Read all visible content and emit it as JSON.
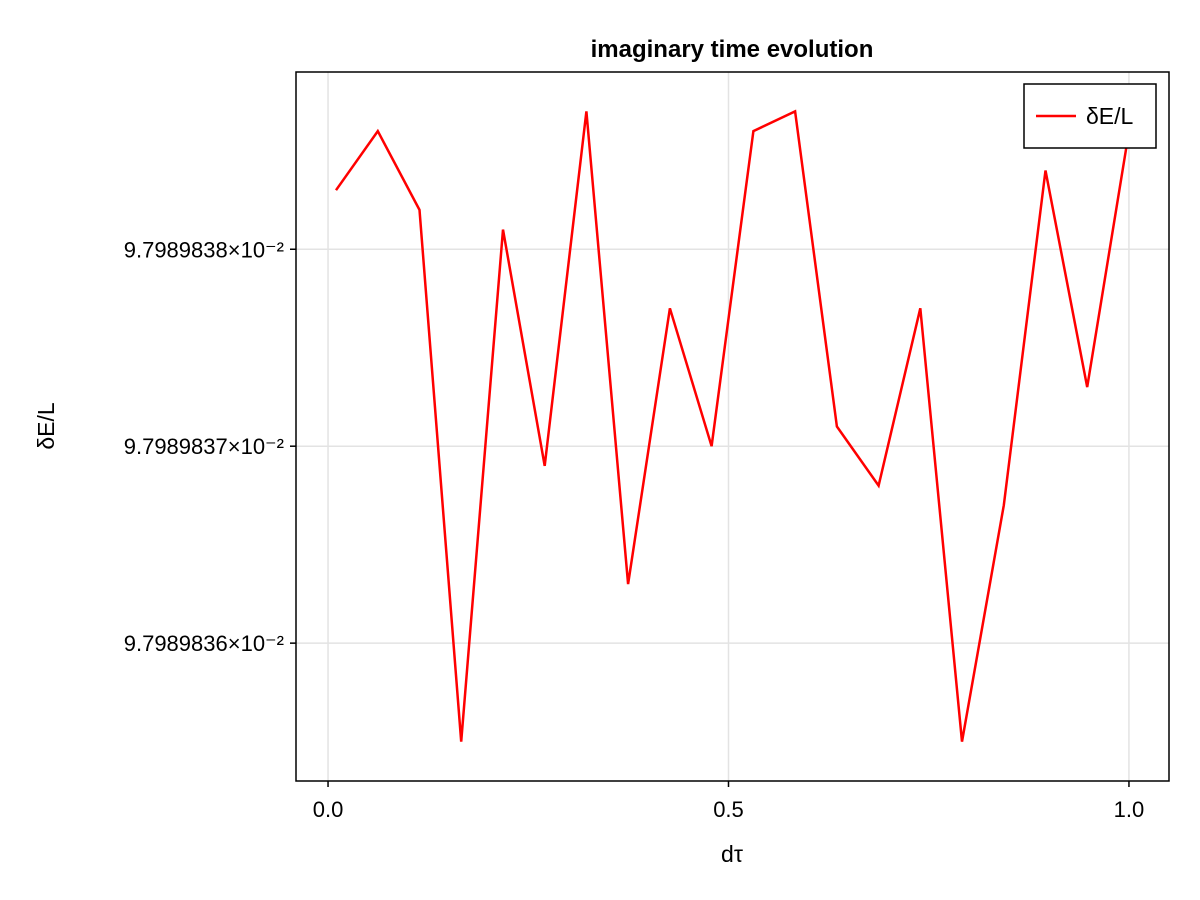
{
  "chart_data": {
    "type": "line",
    "title": "imaginary time evolution",
    "xlabel": "dτ",
    "ylabel": "δE/L",
    "xlim": [
      -0.04,
      1.05
    ],
    "ylim": [
      0.0979898353,
      0.0979898389
    ],
    "xticks": [
      {
        "value": 0.0,
        "label": "0.0"
      },
      {
        "value": 0.5,
        "label": "0.5"
      },
      {
        "value": 1.0,
        "label": "1.0"
      }
    ],
    "yticks": [
      {
        "value": 0.097989836,
        "label": "9.7989836×10⁻²"
      },
      {
        "value": 0.097989837,
        "label": "9.7989837×10⁻²"
      },
      {
        "value": 0.097989838,
        "label": "9.7989838×10⁻²"
      }
    ],
    "grid": true,
    "legend_position": "top-right",
    "series": [
      {
        "name": "δE/L",
        "color": "#ff0000",
        "x": [
          0.01,
          0.0621,
          0.1142,
          0.1663,
          0.2184,
          0.2705,
          0.3226,
          0.3747,
          0.4268,
          0.4789,
          0.5311,
          0.5832,
          0.6353,
          0.6874,
          0.7395,
          0.7916,
          0.8437,
          0.8958,
          0.9479,
          1.0
        ],
        "y": [
          0.0979898383,
          0.0979898386,
          0.0979898382,
          0.0979898355,
          0.0979898381,
          0.0979898369,
          0.0979898387,
          0.0979898363,
          0.0979898377,
          0.097989837,
          0.0979898386,
          0.0979898387,
          0.0979898371,
          0.0979898368,
          0.0979898377,
          0.0979898355,
          0.0979898367,
          0.0979898384,
          0.0979898373,
          0.0979898386
        ]
      }
    ]
  }
}
